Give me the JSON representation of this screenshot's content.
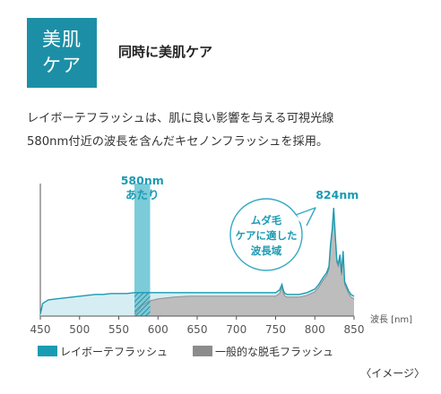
{
  "header": {
    "badge_line1": "美肌",
    "badge_line2": "ケア",
    "title": "同時に美肌ケア"
  },
  "description": {
    "line1": "レイボーテフラッシュは、肌に良い影響を与える可視光線",
    "line2": "580nm付近の波長を含んだキセノンフラッシュを採用。"
  },
  "colors": {
    "accent": "#1c8fa6",
    "laybeaute_line": "#1a9bb3",
    "laybeaute_fill": "#d6eef3",
    "general_fill": "#bdbdbd",
    "highlight_band": "#7ccbd9",
    "bubble_border": "#35a9c2"
  },
  "chart_data": {
    "type": "area",
    "xlabel": "波長 [nm]",
    "xlim": [
      450,
      850
    ],
    "ylim": [
      0,
      100
    ],
    "x_ticks": [
      450,
      500,
      550,
      600,
      650,
      700,
      750,
      800,
      850
    ],
    "highlight_band": {
      "from": 570,
      "to": 590,
      "label_line1": "580nm",
      "label_line2": "あたり"
    },
    "peak_label": {
      "x": 824,
      "text": "824nm"
    },
    "bubble": {
      "line1": "ムダ毛",
      "line2": "ケアに適した",
      "line3": "波長域"
    },
    "series": [
      {
        "name": "レイボーテフラッシュ",
        "x": [
          450,
          453,
          460,
          470,
          480,
          490,
          500,
          510,
          520,
          530,
          540,
          550,
          560,
          570,
          580,
          590,
          600,
          620,
          640,
          660,
          680,
          700,
          720,
          740,
          750,
          755,
          758,
          760,
          762,
          765,
          770,
          780,
          790,
          800,
          805,
          810,
          815,
          818,
          820,
          822,
          824,
          826,
          828,
          830,
          832,
          834,
          836,
          838,
          840,
          843,
          846,
          850
        ],
        "values": [
          2,
          14,
          18,
          19,
          20,
          21,
          22,
          23,
          24,
          24,
          25,
          25,
          25,
          26,
          26,
          26,
          26,
          26,
          26,
          26,
          26,
          26,
          26,
          26,
          26,
          29,
          35,
          28,
          25,
          24,
          24,
          24,
          26,
          30,
          35,
          42,
          48,
          55,
          80,
          95,
          120,
          90,
          62,
          58,
          68,
          48,
          72,
          38,
          34,
          28,
          24,
          22
        ]
      },
      {
        "name": "一般的な脱毛フラッシュ",
        "x": [
          570,
          580,
          590,
          600,
          620,
          640,
          660,
          680,
          700,
          720,
          740,
          750,
          755,
          758,
          760,
          762,
          765,
          770,
          780,
          790,
          800,
          805,
          810,
          815,
          818,
          820,
          822,
          824,
          826,
          828,
          830,
          832,
          834,
          836,
          838,
          840,
          843,
          846,
          850
        ],
        "values": [
          2,
          12,
          17,
          19,
          21,
          22,
          22,
          22,
          22,
          22,
          22,
          22,
          25,
          32,
          25,
          22,
          21,
          21,
          21,
          23,
          27,
          32,
          39,
          45,
          52,
          77,
          92,
          116,
          87,
          59,
          55,
          65,
          45,
          69,
          35,
          31,
          25,
          21,
          19
        ]
      }
    ]
  },
  "legend": {
    "laybeaute": "レイボーテフラッシュ",
    "general": "一般的な脱毛フラッシュ"
  },
  "note": "〈イメージ〉"
}
